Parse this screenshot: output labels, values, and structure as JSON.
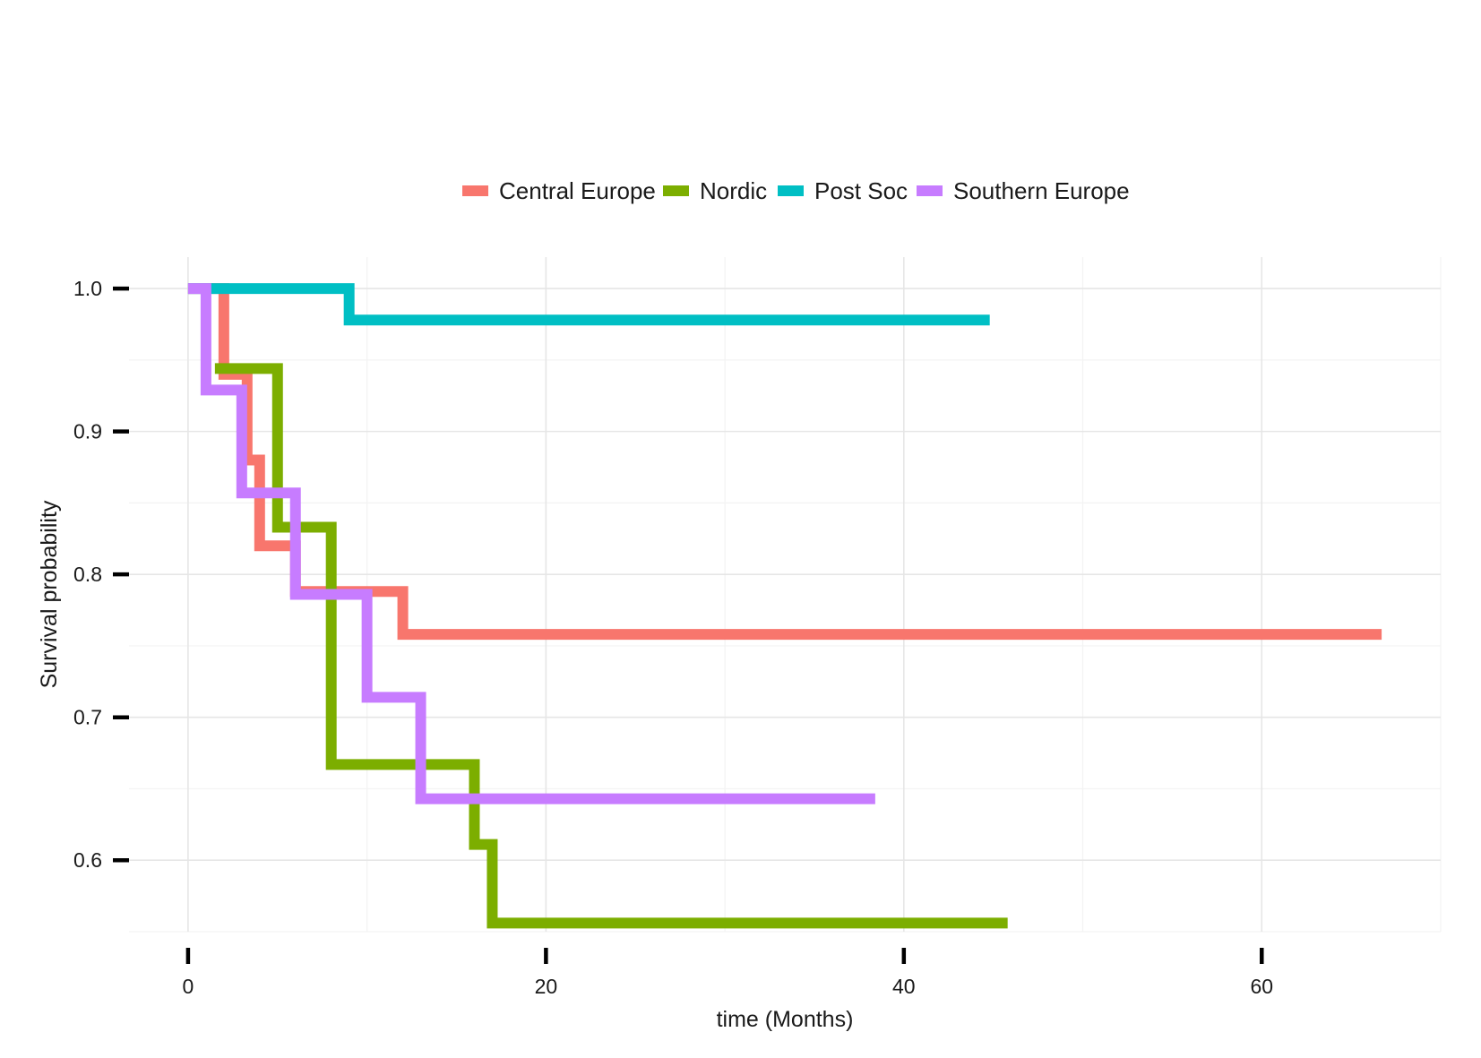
{
  "chart_data": {
    "type": "line",
    "step": true,
    "title": "",
    "xlabel": "time (Months)",
    "ylabel": "Survival probability",
    "xlim": [
      -3.3,
      70
    ],
    "ylim": [
      0.55,
      1.022
    ],
    "x_ticks": [
      0,
      20,
      40,
      60
    ],
    "x_tick_labels": [
      "0",
      "20",
      "40",
      "60"
    ],
    "y_ticks": [
      0.6,
      0.7,
      0.8,
      0.9,
      1.0
    ],
    "y_tick_labels": [
      "0.6",
      "0.7",
      "0.8",
      "0.9",
      "1.0"
    ],
    "grid": true,
    "legend_position": "top",
    "series": [
      {
        "name": "Central Europe",
        "color": "#F8766D",
        "x": [
          0,
          2,
          3.3,
          4,
          6,
          12,
          66.7
        ],
        "y": [
          1.0,
          0.94,
          0.88,
          0.82,
          0.788,
          0.758,
          0.758
        ]
      },
      {
        "name": "Nordic",
        "color": "#7CAE00",
        "x": [
          1.5,
          5,
          8,
          16,
          17,
          45.8
        ],
        "y": [
          0.944,
          0.833,
          0.667,
          0.611,
          0.556,
          0.556
        ]
      },
      {
        "name": "Post Soc",
        "color": "#00BFC4",
        "x": [
          0,
          9,
          44.8
        ],
        "y": [
          1.0,
          0.978,
          0.978
        ]
      },
      {
        "name": "Southern Europe",
        "color": "#C77CFF",
        "x": [
          0,
          1,
          3,
          6,
          10,
          13,
          38.4
        ],
        "y": [
          1.0,
          0.929,
          0.857,
          0.786,
          0.714,
          0.643,
          0.643
        ]
      }
    ]
  }
}
